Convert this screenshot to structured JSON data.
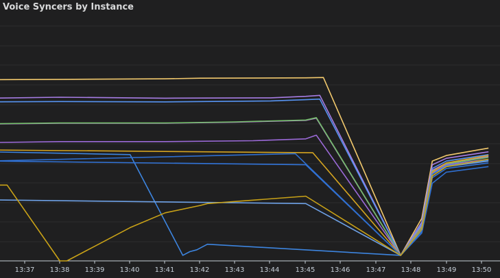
{
  "panel": {
    "title": "Voice Syncers by Instance"
  },
  "chart_data": {
    "type": "line",
    "title": "Voice Syncers by Instance",
    "xlabel": "",
    "ylabel": "",
    "xlim": [
      13.6,
      15.02
    ],
    "ylim": [
      0,
      13
    ],
    "x_ticks": [
      "13:37",
      "13:38",
      "13:39",
      "13:40",
      "13:41",
      "13:42",
      "13:43",
      "13:44",
      "13:45",
      "13:46",
      "13:47",
      "13:48",
      "13:49",
      "13:50"
    ],
    "grid": true,
    "legend": "none",
    "series": [
      {
        "color": "#f2c96d",
        "points": [
          [
            13.6,
            9.8
          ],
          [
            13.8,
            9.82
          ],
          [
            14.1,
            9.85
          ],
          [
            14.2,
            9.88
          ],
          [
            14.5,
            9.9
          ],
          [
            14.55,
            9.92
          ],
          [
            14.77,
            0.3
          ],
          [
            14.83,
            2.3
          ],
          [
            14.86,
            5.4
          ],
          [
            14.9,
            5.7
          ],
          [
            15.02,
            6.1
          ]
        ]
      },
      {
        "color": "#a77de5",
        "points": [
          [
            13.6,
            8.8
          ],
          [
            13.8,
            8.85
          ],
          [
            14.1,
            8.8
          ],
          [
            14.4,
            8.82
          ],
          [
            14.5,
            8.9
          ],
          [
            14.54,
            8.95
          ],
          [
            14.77,
            0.3
          ],
          [
            14.83,
            2.1
          ],
          [
            14.86,
            5.2
          ],
          [
            14.9,
            5.55
          ],
          [
            15.02,
            5.9
          ]
        ]
      },
      {
        "color": "#5794f2",
        "points": [
          [
            13.6,
            8.6
          ],
          [
            13.8,
            8.62
          ],
          [
            14.1,
            8.6
          ],
          [
            14.4,
            8.65
          ],
          [
            14.5,
            8.72
          ],
          [
            14.54,
            8.75
          ],
          [
            14.77,
            0.3
          ],
          [
            14.83,
            2.0
          ],
          [
            14.86,
            5.0
          ],
          [
            14.9,
            5.4
          ],
          [
            15.02,
            5.75
          ]
        ]
      },
      {
        "color": "#b877d9",
        "points": [
          [
            13.6,
            7.4
          ],
          [
            13.8,
            7.45
          ],
          [
            14.1,
            7.45
          ],
          [
            14.3,
            7.5
          ],
          [
            14.5,
            7.6
          ],
          [
            14.53,
            7.72
          ],
          [
            14.77,
            0.3
          ],
          [
            14.83,
            1.9
          ],
          [
            14.86,
            4.9
          ],
          [
            14.9,
            5.3
          ],
          [
            15.02,
            5.65
          ]
        ]
      },
      {
        "color": "#73bf69",
        "points": [
          [
            13.6,
            7.42
          ],
          [
            13.8,
            7.46
          ],
          [
            14.1,
            7.46
          ],
          [
            14.3,
            7.52
          ],
          [
            14.5,
            7.62
          ],
          [
            14.53,
            7.75
          ],
          [
            14.77,
            0.3
          ],
          [
            14.83,
            1.85
          ],
          [
            14.86,
            4.85
          ],
          [
            14.9,
            5.25
          ],
          [
            15.02,
            5.6
          ]
        ]
      },
      {
        "color": "#9b6ad8",
        "points": [
          [
            13.6,
            6.4
          ],
          [
            13.8,
            6.45
          ],
          [
            14.1,
            6.45
          ],
          [
            14.35,
            6.5
          ],
          [
            14.5,
            6.6
          ],
          [
            14.53,
            6.8
          ],
          [
            14.77,
            0.3
          ],
          [
            14.83,
            1.8
          ],
          [
            14.86,
            4.75
          ],
          [
            14.9,
            5.2
          ],
          [
            15.02,
            5.5
          ]
        ]
      },
      {
        "color": "#d6a520",
        "points": [
          [
            13.6,
            6.0
          ],
          [
            14.52,
            5.85
          ],
          [
            14.77,
            0.3
          ],
          [
            14.83,
            1.8
          ],
          [
            14.86,
            4.8
          ],
          [
            14.9,
            5.3
          ],
          [
            15.02,
            5.7
          ]
        ]
      },
      {
        "color": "#3d85e0",
        "points": [
          [
            13.6,
            5.9
          ],
          [
            14.0,
            5.75
          ],
          [
            14.15,
            0.3
          ],
          [
            14.17,
            0.5
          ],
          [
            14.19,
            0.6
          ],
          [
            14.22,
            0.9
          ],
          [
            14.77,
            0.3
          ],
          [
            14.83,
            1.75
          ],
          [
            14.86,
            4.7
          ],
          [
            14.9,
            5.15
          ],
          [
            15.02,
            5.45
          ]
        ]
      },
      {
        "color": "#3274d9",
        "points": [
          [
            13.6,
            5.4
          ],
          [
            14.5,
            5.2
          ],
          [
            14.77,
            0.3
          ],
          [
            14.83,
            1.6
          ],
          [
            14.86,
            4.5
          ],
          [
            14.9,
            5.0
          ],
          [
            15.02,
            5.3
          ]
        ]
      },
      {
        "color": "#2f6fd0",
        "points": [
          [
            13.6,
            5.4
          ],
          [
            14.47,
            5.8
          ],
          [
            14.77,
            0.3
          ],
          [
            14.83,
            1.5
          ],
          [
            14.86,
            4.2
          ],
          [
            14.9,
            4.8
          ],
          [
            15.02,
            5.1
          ]
        ]
      },
      {
        "color": "#6ea1e6",
        "points": [
          [
            13.6,
            3.3
          ],
          [
            14.5,
            3.1
          ],
          [
            14.77,
            0.3
          ],
          [
            14.83,
            1.7
          ],
          [
            14.86,
            4.6
          ],
          [
            14.9,
            5.1
          ],
          [
            15.02,
            5.4
          ]
        ]
      },
      {
        "color": "#c9a217",
        "points": [
          [
            13.6,
            4.1
          ],
          [
            13.65,
            4.1
          ],
          [
            13.8,
            0.0
          ],
          [
            13.82,
            0.0
          ],
          [
            13.9,
            0.8
          ],
          [
            14.0,
            1.8
          ],
          [
            14.1,
            2.6
          ],
          [
            14.2,
            3.0
          ],
          [
            14.22,
            3.1
          ],
          [
            14.5,
            3.5
          ],
          [
            14.77,
            0.3
          ],
          [
            14.83,
            1.7
          ],
          [
            14.86,
            4.6
          ],
          [
            14.9,
            5.1
          ],
          [
            15.02,
            5.5
          ]
        ]
      }
    ]
  }
}
